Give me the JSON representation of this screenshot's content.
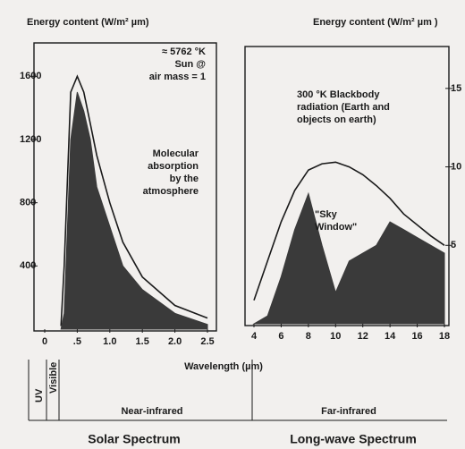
{
  "chart_data": [
    {
      "type": "area",
      "ylabel": "Energy content (W/m² µm)",
      "xlim": [
        0,
        2.5
      ],
      "ylim": [
        0,
        1800
      ],
      "xticks": [
        0,
        {
          "value": 0.5,
          "label": ".5"
        },
        {
          "value": 1,
          "label": "1.0"
        },
        1.5,
        {
          "value": 2,
          "label": "2.0"
        },
        2.5
      ],
      "yticks": [
        400,
        800,
        1200,
        1600
      ],
      "x": [
        0.25,
        0.3,
        0.4,
        0.5,
        0.6,
        0.7,
        0.8,
        1.0,
        1.2,
        1.5,
        2.0,
        2.5
      ],
      "series": [
        {
          "color": "#1a1a1a",
          "fill": false,
          "values": [
            20,
            400,
            1500,
            1600,
            1500,
            1300,
            1100,
            800,
            550,
            330,
            150,
            70
          ]
        },
        {
          "color": "#3a3a3a",
          "fill": true,
          "values": [
            0,
            100,
            1200,
            1500,
            1380,
            1200,
            900,
            650,
            400,
            250,
            100,
            30
          ]
        }
      ],
      "annotations": [
        [
          "≈ 5762 °K",
          "Sun @",
          "air mass = 1"
        ],
        [
          "Molecular",
          "absorption",
          "by the",
          "atmosphere"
        ]
      ]
    },
    {
      "type": "area",
      "ylabel": "Energy content (W/m² µm )",
      "xlim": [
        4,
        18
      ],
      "ylim": [
        0,
        17.5
      ],
      "xticks": [
        4,
        6,
        8,
        10,
        12,
        14,
        16,
        18
      ],
      "yticks": [
        5,
        10,
        15
      ],
      "x": [
        4,
        5,
        6,
        7,
        8,
        9,
        10,
        11,
        12,
        13,
        14,
        15,
        16,
        17,
        18
      ],
      "series": [
        {
          "color": "#1a1a1a",
          "fill": false,
          "values": [
            1.5,
            4,
            6.5,
            8.5,
            9.8,
            10.2,
            10.3,
            10,
            9.5,
            8.8,
            8,
            7,
            6.3,
            5.6,
            5
          ]
        },
        {
          "color": "#3a3a3a",
          "fill": true,
          "values": [
            0,
            0.5,
            3,
            6,
            8.3,
            5,
            2,
            4,
            4.5,
            5,
            6.5,
            6,
            5.5,
            5,
            4.5
          ]
        }
      ],
      "annotations": [
        [
          "300 °K Blackbody",
          "radiation (Earth and",
          "objects on earth)"
        ],
        [
          "\"Sky",
          "Window\""
        ]
      ]
    }
  ],
  "x_label": "Wavelength (µm)",
  "bands": [
    "UV",
    "Visible",
    "Near-infrared",
    "Far-infrared"
  ],
  "spectra": [
    "Solar Spectrum",
    "Long-wave Spectrum"
  ]
}
